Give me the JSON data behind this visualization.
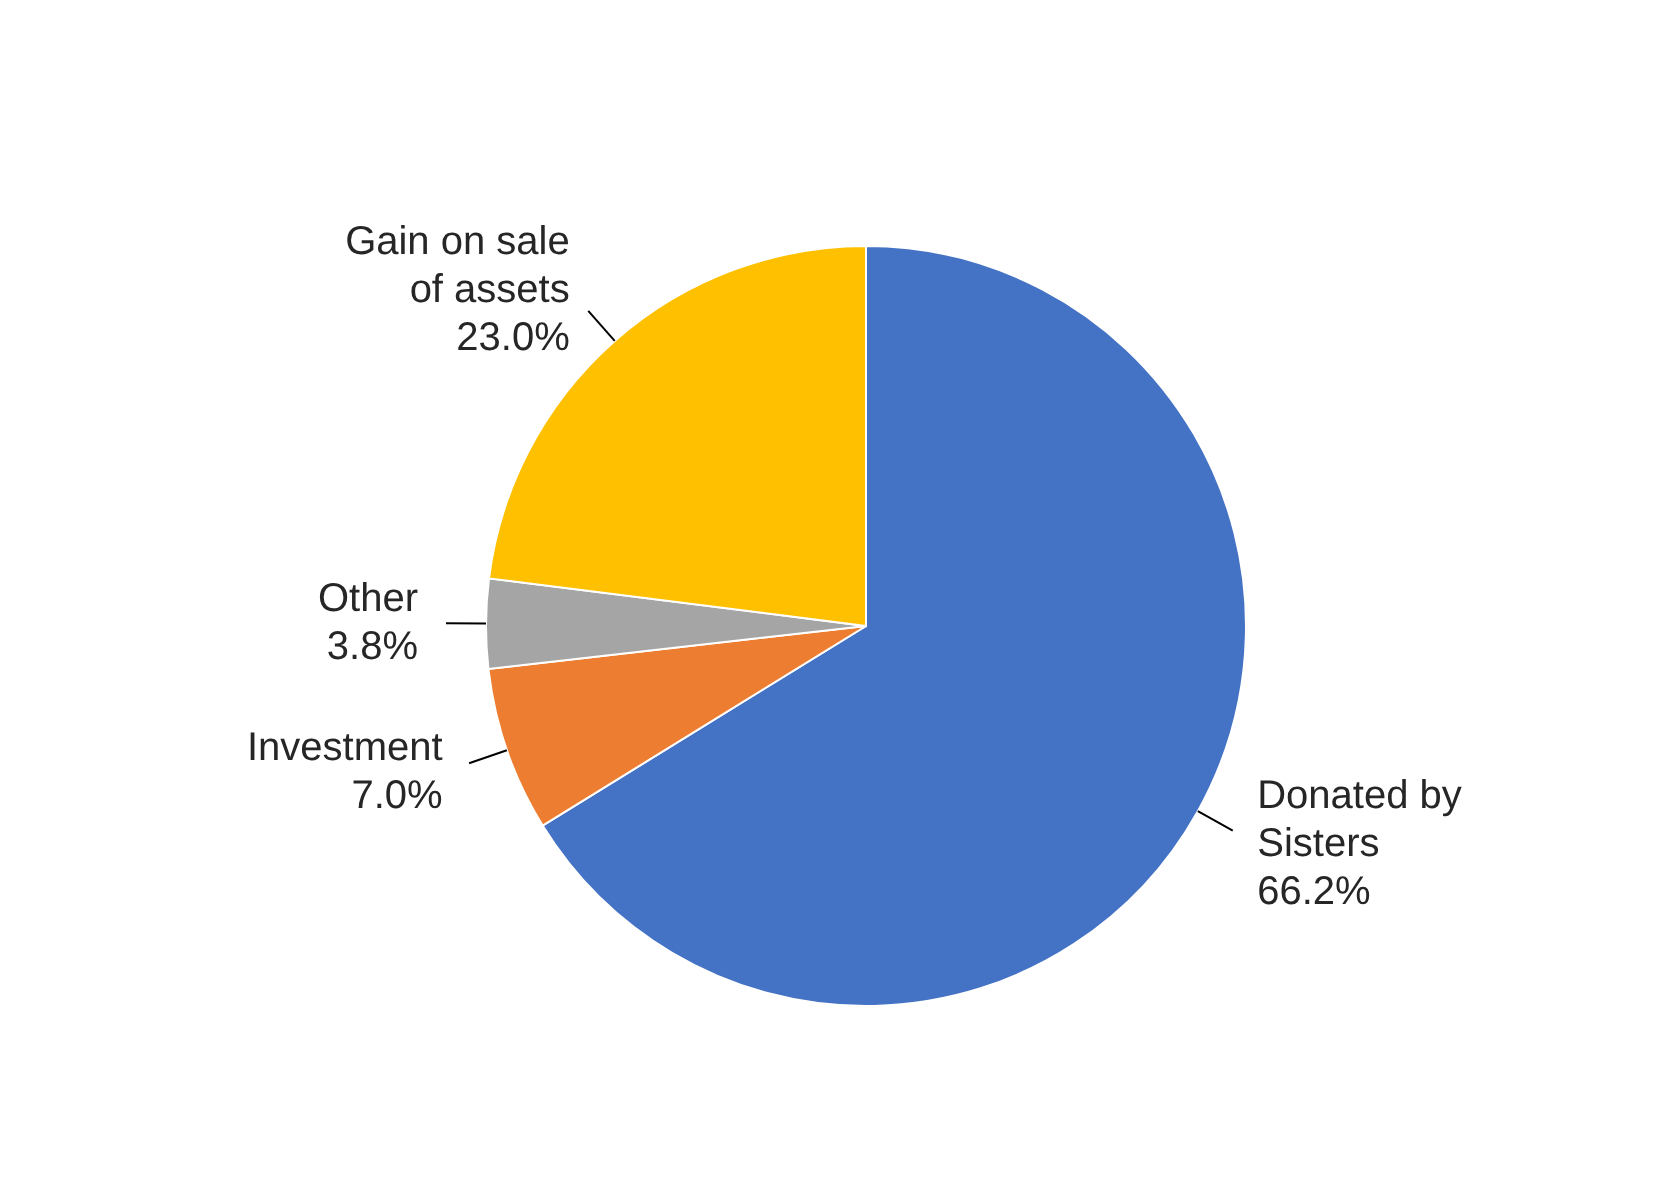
{
  "chart_data": {
    "type": "pie",
    "categories": [
      "Donated by Sisters",
      "Investment",
      "Other",
      "Gain on sale of assets"
    ],
    "values": [
      66.2,
      7.0,
      3.8,
      23.0
    ],
    "colors": [
      "#4472c4",
      "#ed7d31",
      "#a5a5a5",
      "#ffc000"
    ],
    "value_labels": [
      "66.2%",
      "7.0%",
      "3.8%",
      "23.0%"
    ],
    "legend": false
  }
}
